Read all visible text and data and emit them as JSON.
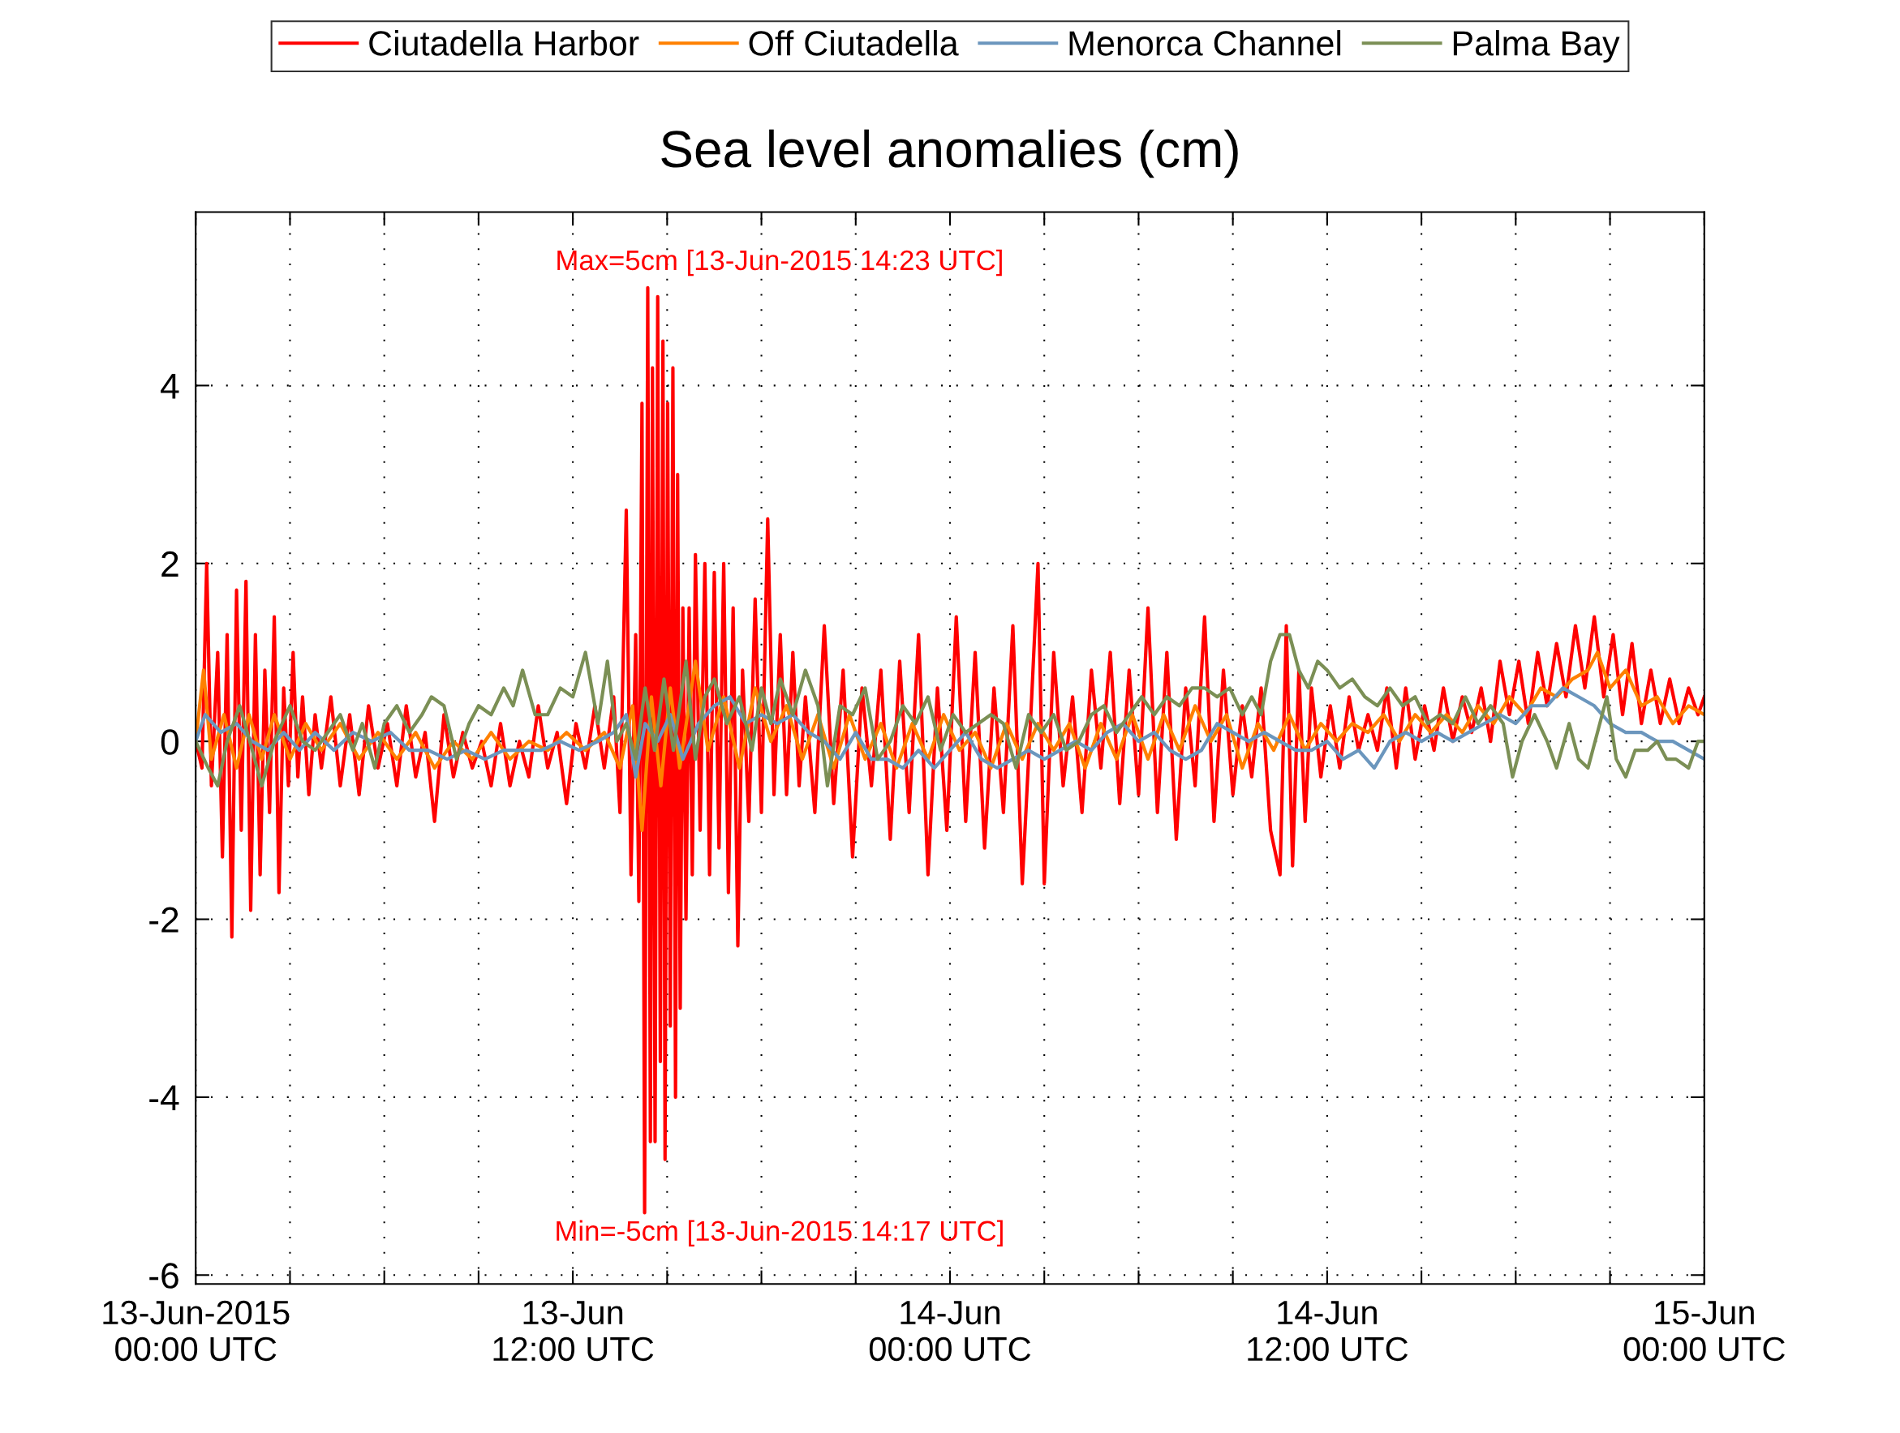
{
  "chart_data": {
    "type": "line",
    "title": "Sea level anomalies (cm)",
    "annotations": [
      "Max=5cm [13-Jun-2015 14:23 UTC]",
      "Min=-5cm [13-Jun-2015 14:17 UTC]"
    ],
    "xlim": [
      "2015-06-13T00:00",
      "2015-06-15T00:00"
    ],
    "ylim": [
      -6.1,
      5.95
    ],
    "xticks": [
      {
        "value": "2015-06-13T00:00",
        "label": "13-Jun-2015\n00:00 UTC"
      },
      {
        "value": "2015-06-13T03:00",
        "label": null
      },
      {
        "value": "2015-06-13T06:00",
        "label": null
      },
      {
        "value": "2015-06-13T09:00",
        "label": null
      },
      {
        "value": "2015-06-13T12:00",
        "label": "13-Jun\n12:00 UTC"
      },
      {
        "value": "2015-06-13T15:00",
        "label": null
      },
      {
        "value": "2015-06-13T18:00",
        "label": null
      },
      {
        "value": "2015-06-13T21:00",
        "label": null
      },
      {
        "value": "2015-06-14T00:00",
        "label": "14-Jun\n00:00 UTC"
      },
      {
        "value": "2015-06-14T03:00",
        "label": null
      },
      {
        "value": "2015-06-14T06:00",
        "label": null
      },
      {
        "value": "2015-06-14T09:00",
        "label": null
      },
      {
        "value": "2015-06-14T12:00",
        "label": "14-Jun\n12:00 UTC"
      },
      {
        "value": "2015-06-14T15:00",
        "label": null
      },
      {
        "value": "2015-06-14T18:00",
        "label": null
      },
      {
        "value": "2015-06-14T21:00",
        "label": null
      },
      {
        "value": "2015-06-15T00:00",
        "label": "15-Jun\n00:00 UTC"
      }
    ],
    "yticks": [
      -6,
      -4,
      -2,
      0,
      2,
      4
    ],
    "grid": true,
    "legend": "top",
    "line_style": "solid",
    "marker": "none",
    "series": [
      {
        "name": "Ciutadella Harbor",
        "color": "#ff0000",
        "x": [
          "2015-06-13T00:00",
          "2015-06-13T00:12",
          "2015-06-13T00:21",
          "2015-06-13T00:30",
          "2015-06-13T00:42",
          "2015-06-13T00:51",
          "2015-06-13T01:00",
          "2015-06-13T01:09",
          "2015-06-13T01:18",
          "2015-06-13T01:27",
          "2015-06-13T01:36",
          "2015-06-13T01:45",
          "2015-06-13T01:54",
          "2015-06-13T02:03",
          "2015-06-13T02:12",
          "2015-06-13T02:21",
          "2015-06-13T02:30",
          "2015-06-13T02:39",
          "2015-06-13T02:48",
          "2015-06-13T02:57",
          "2015-06-13T03:06",
          "2015-06-13T03:15",
          "2015-06-13T03:24",
          "2015-06-13T03:36",
          "2015-06-13T03:48",
          "2015-06-13T04:00",
          "2015-06-13T04:18",
          "2015-06-13T04:36",
          "2015-06-13T04:54",
          "2015-06-13T05:12",
          "2015-06-13T05:30",
          "2015-06-13T05:48",
          "2015-06-13T06:06",
          "2015-06-13T06:24",
          "2015-06-13T06:42",
          "2015-06-13T07:00",
          "2015-06-13T07:18",
          "2015-06-13T07:36",
          "2015-06-13T07:54",
          "2015-06-13T08:12",
          "2015-06-13T08:30",
          "2015-06-13T08:48",
          "2015-06-13T09:06",
          "2015-06-13T09:24",
          "2015-06-13T09:42",
          "2015-06-13T10:00",
          "2015-06-13T10:18",
          "2015-06-13T10:36",
          "2015-06-13T10:54",
          "2015-06-13T11:12",
          "2015-06-13T11:30",
          "2015-06-13T11:48",
          "2015-06-13T12:06",
          "2015-06-13T12:24",
          "2015-06-13T12:42",
          "2015-06-13T13:00",
          "2015-06-13T13:18",
          "2015-06-13T13:30",
          "2015-06-13T13:42",
          "2015-06-13T13:51",
          "2015-06-13T14:00",
          "2015-06-13T14:06",
          "2015-06-13T14:12",
          "2015-06-13T14:17",
          "2015-06-13T14:23",
          "2015-06-13T14:28",
          "2015-06-13T14:32",
          "2015-06-13T14:37",
          "2015-06-13T14:42",
          "2015-06-13T14:47",
          "2015-06-13T14:52",
          "2015-06-13T14:56",
          "2015-06-13T15:01",
          "2015-06-13T15:06",
          "2015-06-13T15:11",
          "2015-06-13T15:16",
          "2015-06-13T15:20",
          "2015-06-13T15:25",
          "2015-06-13T15:30",
          "2015-06-13T15:36",
          "2015-06-13T15:42",
          "2015-06-13T15:48",
          "2015-06-13T15:54",
          "2015-06-13T16:03",
          "2015-06-13T16:12",
          "2015-06-13T16:21",
          "2015-06-13T16:30",
          "2015-06-13T16:39",
          "2015-06-13T16:48",
          "2015-06-13T16:57",
          "2015-06-13T17:06",
          "2015-06-13T17:15",
          "2015-06-13T17:24",
          "2015-06-13T17:36",
          "2015-06-13T17:48",
          "2015-06-13T18:00",
          "2015-06-13T18:12",
          "2015-06-13T18:24",
          "2015-06-13T18:36",
          "2015-06-13T18:48",
          "2015-06-13T19:00",
          "2015-06-13T19:12",
          "2015-06-13T19:24",
          "2015-06-13T19:42",
          "2015-06-13T20:00",
          "2015-06-13T20:18",
          "2015-06-13T20:36",
          "2015-06-13T20:54",
          "2015-06-13T21:12",
          "2015-06-13T21:30",
          "2015-06-13T21:48",
          "2015-06-13T22:06",
          "2015-06-13T22:24",
          "2015-06-13T22:42",
          "2015-06-13T23:00",
          "2015-06-13T23:18",
          "2015-06-13T23:36",
          "2015-06-13T23:54",
          "2015-06-14T00:12",
          "2015-06-14T00:30",
          "2015-06-14T00:48",
          "2015-06-14T01:06",
          "2015-06-14T01:24",
          "2015-06-14T01:42",
          "2015-06-14T02:00",
          "2015-06-14T02:18",
          "2015-06-14T02:36",
          "2015-06-14T02:48",
          "2015-06-14T03:00",
          "2015-06-14T03:18",
          "2015-06-14T03:36",
          "2015-06-14T03:54",
          "2015-06-14T04:12",
          "2015-06-14T04:30",
          "2015-06-14T04:48",
          "2015-06-14T05:06",
          "2015-06-14T05:24",
          "2015-06-14T05:42",
          "2015-06-14T06:00",
          "2015-06-14T06:18",
          "2015-06-14T06:36",
          "2015-06-14T06:54",
          "2015-06-14T07:12",
          "2015-06-14T07:30",
          "2015-06-14T07:48",
          "2015-06-14T08:06",
          "2015-06-14T08:24",
          "2015-06-14T08:42",
          "2015-06-14T09:00",
          "2015-06-14T09:18",
          "2015-06-14T09:36",
          "2015-06-14T09:54",
          "2015-06-14T10:12",
          "2015-06-14T10:30",
          "2015-06-14T10:42",
          "2015-06-14T10:54",
          "2015-06-14T11:06",
          "2015-06-14T11:18",
          "2015-06-14T11:30",
          "2015-06-14T11:48",
          "2015-06-14T12:06",
          "2015-06-14T12:24",
          "2015-06-14T12:42",
          "2015-06-14T13:00",
          "2015-06-14T13:18",
          "2015-06-14T13:36",
          "2015-06-14T13:54",
          "2015-06-14T14:12",
          "2015-06-14T14:30",
          "2015-06-14T14:48",
          "2015-06-14T15:06",
          "2015-06-14T15:24",
          "2015-06-14T15:42",
          "2015-06-14T16:00",
          "2015-06-14T16:18",
          "2015-06-14T16:36",
          "2015-06-14T16:54",
          "2015-06-14T17:12",
          "2015-06-14T17:30",
          "2015-06-14T17:48",
          "2015-06-14T18:06",
          "2015-06-14T18:24",
          "2015-06-14T18:42",
          "2015-06-14T19:00",
          "2015-06-14T19:18",
          "2015-06-14T19:36",
          "2015-06-14T19:54",
          "2015-06-14T20:12",
          "2015-06-14T20:30",
          "2015-06-14T20:48",
          "2015-06-14T21:06",
          "2015-06-14T21:24",
          "2015-06-14T21:42",
          "2015-06-14T22:00",
          "2015-06-14T22:18",
          "2015-06-14T22:36",
          "2015-06-14T22:54",
          "2015-06-14T23:12",
          "2015-06-14T23:30",
          "2015-06-14T23:48",
          "2015-06-15T00:00"
        ],
        "values": [
          0,
          -0.3,
          2.0,
          -0.5,
          1.0,
          -1.3,
          1.2,
          -2.2,
          1.7,
          -1.0,
          1.8,
          -1.9,
          1.2,
          -1.5,
          0.8,
          -0.8,
          1.4,
          -1.7,
          0.6,
          -0.5,
          1.0,
          -0.4,
          0.5,
          -0.6,
          0.3,
          -0.3,
          0.5,
          -0.5,
          0.3,
          -0.6,
          0.4,
          -0.3,
          0.2,
          -0.5,
          0.4,
          -0.4,
          0.1,
          -0.9,
          0.3,
          -0.4,
          0.1,
          -0.3,
          0.0,
          -0.5,
          0.2,
          -0.5,
          0.0,
          -0.4,
          0.4,
          -0.3,
          0.1,
          -0.7,
          0.2,
          -0.3,
          0.4,
          -0.3,
          0.5,
          -0.8,
          2.6,
          -1.5,
          1.2,
          -1.8,
          3.8,
          -5.3,
          5.1,
          -4.5,
          4.2,
          -4.5,
          5.0,
          -3.6,
          4.5,
          -4.7,
          3.8,
          -3.2,
          4.2,
          -4.0,
          3.0,
          -3.0,
          1.5,
          -2.0,
          1.5,
          -1.5,
          2.1,
          -1.0,
          2.0,
          -1.5,
          1.9,
          -1.2,
          2.0,
          -1.7,
          1.5,
          -2.3,
          0.8,
          -0.9,
          1.6,
          -0.8,
          2.5,
          -0.6,
          1.2,
          -0.6,
          1.0,
          -0.5,
          0.5,
          -0.8,
          1.3,
          -0.7,
          0.8,
          -1.3,
          0.6,
          -0.5,
          0.8,
          -1.1,
          0.9,
          -0.8,
          1.2,
          -1.5,
          0.6,
          -1.0,
          1.4,
          -0.9,
          1.0,
          -1.2,
          0.6,
          -0.8,
          1.3,
          -1.6,
          0.5,
          2.0,
          -1.6,
          1.0,
          -0.5,
          0.5,
          -0.8,
          0.8,
          -0.3,
          1.0,
          -0.7,
          0.8,
          -0.6,
          1.5,
          -0.8,
          1.0,
          -1.1,
          0.6,
          -0.5,
          1.4,
          -0.9,
          0.8,
          -0.6,
          0.4,
          -0.4,
          0.6,
          -1.0,
          -1.5,
          1.3,
          -1.4,
          0.8,
          -0.9,
          0.6,
          -0.4,
          0.4,
          -0.3,
          0.5,
          -0.1,
          0.3,
          -0.1,
          0.6,
          -0.3,
          0.6,
          -0.2,
          0.4,
          -0.1,
          0.6,
          0.0,
          0.5,
          0.1,
          0.6,
          0.0,
          0.9,
          0.3,
          0.9,
          0.2,
          1.0,
          0.4,
          1.1,
          0.5,
          1.3,
          0.6,
          1.4,
          0.5,
          1.2,
          0.3,
          1.1,
          0.2,
          0.8,
          0.2,
          0.7,
          0.2,
          0.6,
          0.3,
          0.5
        ]
      },
      {
        "name": "Off Ciutadella",
        "color": "#ff8000",
        "x": [
          "2015-06-13T00:00",
          "2015-06-13T00:15",
          "2015-06-13T00:30",
          "2015-06-13T00:54",
          "2015-06-13T01:18",
          "2015-06-13T01:42",
          "2015-06-13T02:06",
          "2015-06-13T02:30",
          "2015-06-13T03:00",
          "2015-06-13T03:30",
          "2015-06-13T04:00",
          "2015-06-13T04:36",
          "2015-06-13T05:12",
          "2015-06-13T05:48",
          "2015-06-13T06:24",
          "2015-06-13T07:00",
          "2015-06-13T07:36",
          "2015-06-13T08:12",
          "2015-06-13T08:48",
          "2015-06-13T09:24",
          "2015-06-13T10:00",
          "2015-06-13T10:36",
          "2015-06-13T11:12",
          "2015-06-13T11:48",
          "2015-06-13T12:24",
          "2015-06-13T13:00",
          "2015-06-13T13:30",
          "2015-06-13T13:54",
          "2015-06-13T14:12",
          "2015-06-13T14:30",
          "2015-06-13T14:48",
          "2015-06-13T15:06",
          "2015-06-13T15:24",
          "2015-06-13T15:54",
          "2015-06-13T16:18",
          "2015-06-13T16:48",
          "2015-06-13T17:18",
          "2015-06-13T17:48",
          "2015-06-13T18:18",
          "2015-06-13T18:48",
          "2015-06-13T19:18",
          "2015-06-13T19:48",
          "2015-06-13T20:18",
          "2015-06-13T20:48",
          "2015-06-13T21:18",
          "2015-06-13T21:48",
          "2015-06-13T22:18",
          "2015-06-13T22:48",
          "2015-06-13T23:18",
          "2015-06-13T23:48",
          "2015-06-14T00:18",
          "2015-06-14T00:48",
          "2015-06-14T01:18",
          "2015-06-14T01:48",
          "2015-06-14T02:18",
          "2015-06-14T02:48",
          "2015-06-14T03:18",
          "2015-06-14T03:48",
          "2015-06-14T04:18",
          "2015-06-14T04:48",
          "2015-06-14T05:18",
          "2015-06-14T05:48",
          "2015-06-14T06:18",
          "2015-06-14T06:48",
          "2015-06-14T07:18",
          "2015-06-14T07:48",
          "2015-06-14T08:18",
          "2015-06-14T08:48",
          "2015-06-14T09:18",
          "2015-06-14T09:48",
          "2015-06-14T10:18",
          "2015-06-14T10:48",
          "2015-06-14T11:18",
          "2015-06-14T11:48",
          "2015-06-14T12:18",
          "2015-06-14T12:48",
          "2015-06-14T13:18",
          "2015-06-14T13:48",
          "2015-06-14T14:18",
          "2015-06-14T14:48",
          "2015-06-14T15:18",
          "2015-06-14T15:48",
          "2015-06-14T16:18",
          "2015-06-14T16:48",
          "2015-06-14T17:18",
          "2015-06-14T17:48",
          "2015-06-14T18:18",
          "2015-06-14T18:48",
          "2015-06-14T19:18",
          "2015-06-14T19:48",
          "2015-06-14T20:18",
          "2015-06-14T20:36",
          "2015-06-14T21:00",
          "2015-06-14T21:30",
          "2015-06-14T22:00",
          "2015-06-14T22:30",
          "2015-06-14T23:00",
          "2015-06-14T23:30",
          "2015-06-15T00:00"
        ],
        "values": [
          0,
          0.8,
          -0.2,
          0.3,
          -0.3,
          0.3,
          -0.2,
          0.3,
          -0.2,
          0.2,
          -0.1,
          0.2,
          -0.2,
          0.1,
          -0.2,
          0.1,
          -0.3,
          0.0,
          -0.2,
          0.1,
          -0.2,
          0.0,
          -0.1,
          0.1,
          -0.1,
          0.1,
          -0.3,
          0.4,
          -1.0,
          0.5,
          -0.5,
          0.6,
          -0.3,
          0.9,
          -0.1,
          0.5,
          -0.3,
          0.6,
          0.0,
          0.4,
          -0.2,
          0.3,
          -0.3,
          0.3,
          -0.2,
          0.2,
          -0.3,
          0.2,
          -0.2,
          0.3,
          -0.1,
          0.1,
          -0.3,
          0.2,
          -0.2,
          0.2,
          -0.1,
          0.2,
          -0.3,
          0.2,
          -0.2,
          0.3,
          -0.2,
          0.3,
          -0.1,
          0.4,
          0.0,
          0.3,
          -0.3,
          0.2,
          -0.1,
          0.3,
          -0.1,
          0.2,
          0.0,
          0.2,
          0.1,
          0.3,
          0.0,
          0.3,
          0.1,
          0.3,
          0.1,
          0.4,
          0.2,
          0.5,
          0.3,
          0.6,
          0.5,
          0.7,
          0.8,
          1.0,
          0.6,
          0.8,
          0.4,
          0.5,
          0.2,
          0.4,
          0.3
        ]
      },
      {
        "name": "Menorca Channel",
        "color": "#6b96bd",
        "x": [
          "2015-06-13T00:00",
          "2015-06-13T00:18",
          "2015-06-13T00:48",
          "2015-06-13T01:18",
          "2015-06-13T01:48",
          "2015-06-13T02:18",
          "2015-06-13T02:48",
          "2015-06-13T03:18",
          "2015-06-13T03:48",
          "2015-06-13T04:24",
          "2015-06-13T05:00",
          "2015-06-13T05:36",
          "2015-06-13T06:12",
          "2015-06-13T06:48",
          "2015-06-13T07:24",
          "2015-06-13T08:00",
          "2015-06-13T08:36",
          "2015-06-13T09:12",
          "2015-06-13T09:48",
          "2015-06-13T10:24",
          "2015-06-13T11:00",
          "2015-06-13T11:36",
          "2015-06-13T12:12",
          "2015-06-13T12:48",
          "2015-06-13T13:18",
          "2015-06-13T13:42",
          "2015-06-13T14:00",
          "2015-06-13T14:18",
          "2015-06-13T14:42",
          "2015-06-13T15:06",
          "2015-06-13T15:30",
          "2015-06-13T16:00",
          "2015-06-13T16:30",
          "2015-06-13T17:00",
          "2015-06-13T17:30",
          "2015-06-13T18:00",
          "2015-06-13T18:30",
          "2015-06-13T19:00",
          "2015-06-13T19:30",
          "2015-06-13T20:00",
          "2015-06-13T20:30",
          "2015-06-13T21:00",
          "2015-06-13T21:30",
          "2015-06-13T22:00",
          "2015-06-13T22:30",
          "2015-06-13T23:00",
          "2015-06-13T23:30",
          "2015-06-14T00:00",
          "2015-06-14T00:30",
          "2015-06-14T01:00",
          "2015-06-14T01:30",
          "2015-06-14T02:00",
          "2015-06-14T02:30",
          "2015-06-14T03:00",
          "2015-06-14T03:30",
          "2015-06-14T04:00",
          "2015-06-14T04:30",
          "2015-06-14T05:00",
          "2015-06-14T05:30",
          "2015-06-14T06:00",
          "2015-06-14T06:30",
          "2015-06-14T07:00",
          "2015-06-14T07:30",
          "2015-06-14T08:00",
          "2015-06-14T08:30",
          "2015-06-14T09:00",
          "2015-06-14T09:30",
          "2015-06-14T10:00",
          "2015-06-14T10:30",
          "2015-06-14T11:00",
          "2015-06-14T11:30",
          "2015-06-14T12:00",
          "2015-06-14T12:30",
          "2015-06-14T13:00",
          "2015-06-14T13:30",
          "2015-06-14T14:00",
          "2015-06-14T14:30",
          "2015-06-14T15:00",
          "2015-06-14T15:30",
          "2015-06-14T16:00",
          "2015-06-14T16:30",
          "2015-06-14T17:00",
          "2015-06-14T17:30",
          "2015-06-14T18:00",
          "2015-06-14T18:30",
          "2015-06-14T19:00",
          "2015-06-14T19:30",
          "2015-06-14T20:00",
          "2015-06-14T20:30",
          "2015-06-14T21:00",
          "2015-06-14T21:30",
          "2015-06-14T22:00",
          "2015-06-14T22:30",
          "2015-06-14T23:00",
          "2015-06-14T23:30",
          "2015-06-15T00:00"
        ],
        "values": [
          0,
          0.3,
          0.1,
          0.2,
          0.0,
          -0.1,
          0.1,
          -0.1,
          0.1,
          -0.1,
          0.1,
          0.0,
          0.1,
          -0.1,
          -0.1,
          -0.2,
          -0.1,
          -0.2,
          -0.1,
          -0.1,
          -0.1,
          0.0,
          -0.1,
          0.0,
          0.1,
          0.3,
          -0.4,
          0.2,
          0.0,
          0.3,
          -0.2,
          0.2,
          0.4,
          0.5,
          0.2,
          0.3,
          0.2,
          0.3,
          0.1,
          0.0,
          -0.2,
          0.1,
          -0.2,
          -0.2,
          -0.3,
          -0.1,
          -0.3,
          -0.1,
          0.1,
          -0.2,
          -0.3,
          -0.2,
          -0.1,
          -0.2,
          -0.1,
          0.0,
          -0.1,
          0.1,
          0.2,
          0.0,
          0.1,
          -0.1,
          -0.2,
          -0.1,
          0.2,
          0.1,
          0.0,
          0.1,
          0.0,
          -0.1,
          -0.1,
          0.0,
          -0.2,
          -0.1,
          -0.3,
          0.0,
          0.1,
          0.0,
          0.1,
          0.0,
          0.1,
          0.2,
          0.3,
          0.2,
          0.4,
          0.4,
          0.6,
          0.5,
          0.4,
          0.2,
          0.1,
          0.1,
          0.0,
          0.0,
          -0.1,
          -0.2
        ]
      },
      {
        "name": "Palma Bay",
        "color": "#7b8f55",
        "x": [
          "2015-06-13T00:00",
          "2015-06-13T00:24",
          "2015-06-13T00:42",
          "2015-06-13T01:00",
          "2015-06-13T01:24",
          "2015-06-13T01:48",
          "2015-06-13T02:06",
          "2015-06-13T02:30",
          "2015-06-13T03:00",
          "2015-06-13T03:24",
          "2015-06-13T03:48",
          "2015-06-13T04:12",
          "2015-06-13T04:36",
          "2015-06-13T05:00",
          "2015-06-13T05:18",
          "2015-06-13T05:42",
          "2015-06-13T06:00",
          "2015-06-13T06:24",
          "2015-06-13T06:48",
          "2015-06-13T07:12",
          "2015-06-13T07:30",
          "2015-06-13T07:54",
          "2015-06-13T08:18",
          "2015-06-13T08:42",
          "2015-06-13T09:00",
          "2015-06-13T09:24",
          "2015-06-13T09:48",
          "2015-06-13T10:06",
          "2015-06-13T10:24",
          "2015-06-13T10:48",
          "2015-06-13T11:12",
          "2015-06-13T11:36",
          "2015-06-13T12:00",
          "2015-06-13T12:24",
          "2015-06-13T12:48",
          "2015-06-13T13:06",
          "2015-06-13T13:24",
          "2015-06-13T13:42",
          "2015-06-13T14:00",
          "2015-06-13T14:18",
          "2015-06-13T14:36",
          "2015-06-13T14:54",
          "2015-06-13T15:12",
          "2015-06-13T15:36",
          "2015-06-13T15:54",
          "2015-06-13T16:12",
          "2015-06-13T16:30",
          "2015-06-13T16:54",
          "2015-06-13T17:18",
          "2015-06-13T17:42",
          "2015-06-13T18:00",
          "2015-06-13T18:18",
          "2015-06-13T18:36",
          "2015-06-13T19:00",
          "2015-06-13T19:24",
          "2015-06-13T19:48",
          "2015-06-13T20:06",
          "2015-06-13T20:30",
          "2015-06-13T20:54",
          "2015-06-13T21:18",
          "2015-06-13T21:42",
          "2015-06-13T22:06",
          "2015-06-13T22:30",
          "2015-06-13T22:54",
          "2015-06-13T23:18",
          "2015-06-13T23:42",
          "2015-06-14T00:06",
          "2015-06-14T00:30",
          "2015-06-14T00:54",
          "2015-06-14T01:18",
          "2015-06-14T01:42",
          "2015-06-14T02:06",
          "2015-06-14T02:30",
          "2015-06-14T02:54",
          "2015-06-14T03:18",
          "2015-06-14T03:42",
          "2015-06-14T04:06",
          "2015-06-14T04:30",
          "2015-06-14T04:54",
          "2015-06-14T05:18",
          "2015-06-14T05:42",
          "2015-06-14T06:06",
          "2015-06-14T06:30",
          "2015-06-14T06:54",
          "2015-06-14T07:18",
          "2015-06-14T07:42",
          "2015-06-14T08:06",
          "2015-06-14T08:30",
          "2015-06-14T08:54",
          "2015-06-14T09:18",
          "2015-06-14T09:36",
          "2015-06-14T09:54",
          "2015-06-14T10:12",
          "2015-06-14T10:30",
          "2015-06-14T10:48",
          "2015-06-14T11:06",
          "2015-06-14T11:24",
          "2015-06-14T11:42",
          "2015-06-14T12:00",
          "2015-06-14T12:24",
          "2015-06-14T12:48",
          "2015-06-14T13:12",
          "2015-06-14T13:36",
          "2015-06-14T14:00",
          "2015-06-14T14:24",
          "2015-06-14T14:48",
          "2015-06-14T15:12",
          "2015-06-14T15:36",
          "2015-06-14T16:00",
          "2015-06-14T16:24",
          "2015-06-14T16:48",
          "2015-06-14T17:12",
          "2015-06-14T17:36",
          "2015-06-14T17:54",
          "2015-06-14T18:12",
          "2015-06-14T18:36",
          "2015-06-14T19:00",
          "2015-06-14T19:18",
          "2015-06-14T19:42",
          "2015-06-14T20:00",
          "2015-06-14T20:18",
          "2015-06-14T20:36",
          "2015-06-14T20:54",
          "2015-06-14T21:12",
          "2015-06-14T21:30",
          "2015-06-14T21:48",
          "2015-06-14T22:12",
          "2015-06-14T22:30",
          "2015-06-14T22:48",
          "2015-06-14T23:06",
          "2015-06-14T23:30",
          "2015-06-14T23:48",
          "2015-06-15T00:00"
        ],
        "values": [
          0,
          -0.3,
          -0.5,
          0.0,
          0.4,
          -0.1,
          -0.5,
          0.0,
          0.4,
          0.0,
          -0.1,
          0.1,
          0.3,
          -0.1,
          0.2,
          -0.3,
          0.2,
          0.4,
          0.1,
          0.3,
          0.5,
          0.4,
          -0.2,
          0.2,
          0.4,
          0.3,
          0.6,
          0.4,
          0.8,
          0.3,
          0.3,
          0.6,
          0.5,
          1.0,
          0.2,
          0.9,
          0.0,
          0.2,
          -0.2,
          0.6,
          -0.1,
          0.7,
          -0.1,
          0.9,
          -0.2,
          0.5,
          0.7,
          0.2,
          0.5,
          -0.1,
          0.6,
          0.2,
          0.7,
          0.3,
          0.8,
          0.4,
          -0.5,
          0.4,
          0.3,
          0.6,
          -0.2,
          0.0,
          0.4,
          0.2,
          0.5,
          -0.1,
          0.3,
          0.1,
          0.2,
          0.3,
          0.2,
          -0.3,
          0.3,
          0.1,
          0.3,
          -0.1,
          0.0,
          0.3,
          0.4,
          0.1,
          0.3,
          0.5,
          0.3,
          0.5,
          0.4,
          0.6,
          0.6,
          0.5,
          0.6,
          0.3,
          0.5,
          0.3,
          0.9,
          1.2,
          1.2,
          0.8,
          0.6,
          0.9,
          0.8,
          0.6,
          0.7,
          0.5,
          0.4,
          0.6,
          0.4,
          0.5,
          0.2,
          0.3,
          0.2,
          0.5,
          0.2,
          0.4,
          0.2,
          -0.4,
          0.0,
          0.3,
          0.0,
          -0.3,
          0.2,
          -0.2,
          -0.3,
          0.1,
          0.5,
          -0.2,
          -0.4,
          -0.1,
          -0.1,
          0.0,
          -0.2,
          -0.2,
          -0.3,
          0.0,
          0.0
        ]
      }
    ]
  }
}
